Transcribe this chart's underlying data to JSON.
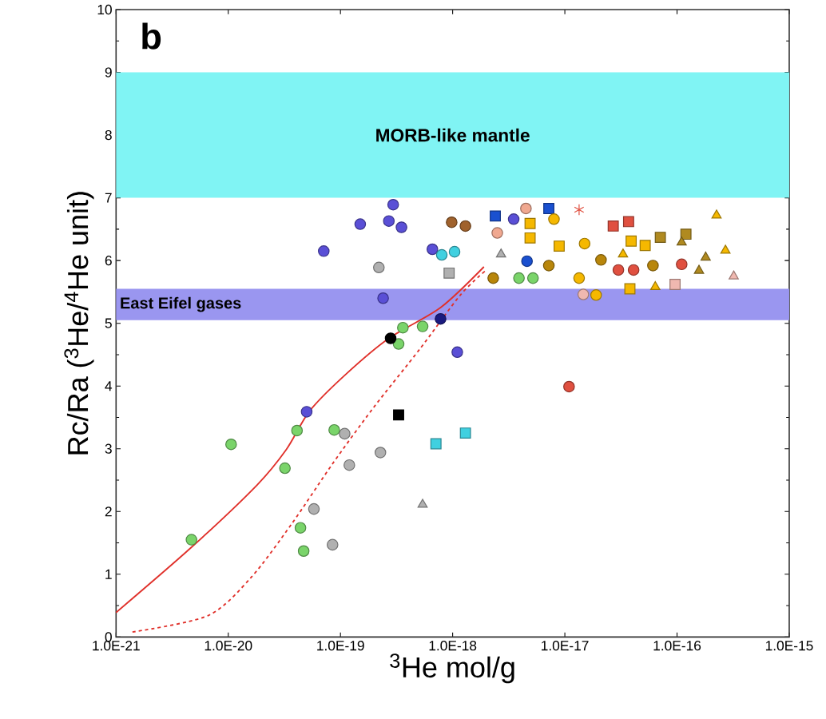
{
  "chart_data": {
    "type": "scatter",
    "xlabel": "$^{3}$He mol/g",
    "ylabel": "Rc/Ra ($^{3}$He/$^{4}$He unit)",
    "annotations": [
      "b"
    ],
    "log": "x",
    "xlim": [
      1e-21,
      1e-15
    ],
    "ylim": [
      0,
      10
    ],
    "xticks": [
      {
        "value": 1e-21,
        "label": "1.0E-21"
      },
      {
        "value": 1e-20,
        "label": "1.0E-20"
      },
      {
        "value": 1e-19,
        "label": "1.0E-19"
      },
      {
        "value": 1e-18,
        "label": "1.0E-18"
      },
      {
        "value": 1e-17,
        "label": "1.0E-17"
      },
      {
        "value": 1e-16,
        "label": "1.0E-16"
      },
      {
        "value": 1e-15,
        "label": "1.0E-15"
      }
    ],
    "yticks": [
      0,
      1,
      2,
      3,
      4,
      5,
      6,
      7,
      8,
      9,
      10
    ],
    "bands": [
      {
        "axis": "y",
        "from": 7,
        "to": 9,
        "label": "MORB-like mantle",
        "color": "#80f4f4"
      },
      {
        "axis": "y",
        "from": 5.05,
        "to": 5.55,
        "label": "East Eifel gases",
        "color": "#9a96f0"
      }
    ],
    "series": [
      {
        "type": "line",
        "color": "#e0302a",
        "marker": "none",
        "line_style": "solid",
        "x": [
          1e-21,
          4.7e-21,
          1.8e-20,
          3.3e-20,
          5.3e-20,
          1.09e-19,
          2.7e-19,
          7.8e-19,
          1.9e-18
        ],
        "values": [
          0.39,
          1.43,
          2.42,
          2.99,
          3.6,
          4.17,
          4.76,
          5.25,
          5.9
        ]
      },
      {
        "type": "line",
        "color": "#e0302a",
        "marker": "none",
        "line_style": "dashed",
        "x": [
          1.4e-21,
          6.6e-21,
          1.6e-20,
          3.7e-20,
          8.5e-20,
          1.96e-19,
          5.1e-19,
          1.17e-18,
          1.94e-18
        ],
        "values": [
          0.08,
          0.34,
          0.95,
          1.81,
          2.76,
          3.65,
          4.59,
          5.45,
          5.83
        ]
      },
      {
        "color": "#5a4fd6",
        "marker": "circle",
        "x": [
          2.95e-19,
          2.7e-19,
          3.5e-19,
          1.5e-19,
          7.1e-20,
          2.4e-19,
          1.1e-18,
          5e-20,
          6.6e-19,
          3.5e-18
        ],
        "values": [
          6.89,
          6.63,
          6.53,
          6.58,
          6.15,
          5.4,
          4.54,
          3.59,
          6.18,
          6.66
        ]
      },
      {
        "color": "#1a1a80",
        "marker": "circle",
        "x": [
          7.8e-19
        ],
        "values": [
          5.07
        ]
      },
      {
        "color": "#a0622d",
        "marker": "circle",
        "x": [
          9.8e-19,
          1.3e-18
        ],
        "values": [
          6.61,
          6.55
        ]
      },
      {
        "color": "#b0b0b0",
        "marker": "circle",
        "x": [
          2.2e-19,
          2.27e-19,
          1.09e-19,
          1.2e-19,
          5.8e-20,
          8.5e-20
        ],
        "values": [
          5.89,
          2.94,
          3.24,
          2.74,
          2.04,
          1.47
        ]
      },
      {
        "color": "#b0b0b0",
        "marker": "square",
        "x": [
          9.3e-19
        ],
        "values": [
          5.8
        ]
      },
      {
        "color": "#b0b0b0",
        "marker": "triangle",
        "x": [
          5.4e-19,
          2.7e-18
        ],
        "values": [
          2.11,
          6.1
        ]
      },
      {
        "color": "#7ad46a",
        "marker": "circle",
        "x": [
          1.06e-20,
          4.7e-21,
          3.2e-20,
          4.1e-20,
          8.8e-20,
          4.4e-20,
          4.7e-20,
          3.3e-19,
          3.6e-19,
          5.4e-19,
          3.9e-18,
          5.2e-18
        ],
        "values": [
          3.07,
          1.55,
          2.69,
          3.29,
          3.3,
          1.74,
          1.37,
          4.67,
          4.93,
          4.95,
          5.72,
          5.72
        ]
      },
      {
        "color": "#000000",
        "marker": "circle",
        "x": [
          2.8e-19
        ],
        "values": [
          4.76
        ]
      },
      {
        "color": "#000000",
        "marker": "square",
        "x": [
          3.3e-19
        ],
        "values": [
          3.54
        ]
      },
      {
        "color": "#e05040",
        "marker": "circle",
        "x": [
          1.09e-17,
          3e-17,
          4.1e-17,
          1.1e-16
        ],
        "values": [
          3.99,
          5.85,
          5.85,
          5.94
        ]
      },
      {
        "color": "#e05040",
        "marker": "square",
        "x": [
          2.7e-17,
          3.7e-17
        ],
        "values": [
          6.55,
          6.62
        ]
      },
      {
        "color": "#e05040",
        "marker": "cross",
        "x": [
          1.34e-17
        ],
        "values": [
          6.81
        ]
      },
      {
        "color": "#f0a890",
        "marker": "circle",
        "x": [
          4.5e-18,
          2.5e-18
        ],
        "values": [
          6.83,
          6.44
        ]
      },
      {
        "color": "#40d0e0",
        "marker": "circle",
        "x": [
          8e-19,
          1.04e-18
        ],
        "values": [
          6.09,
          6.14
        ]
      },
      {
        "color": "#40d0e0",
        "marker": "square",
        "x": [
          7.1e-19,
          1.3e-18
        ],
        "values": [
          3.08,
          3.25
        ]
      },
      {
        "color": "#1a50d0",
        "marker": "square",
        "x": [
          2.4e-18,
          7.2e-18
        ],
        "values": [
          6.71,
          6.83
        ]
      },
      {
        "color": "#1a50d0",
        "marker": "circle",
        "x": [
          4.6e-18
        ],
        "values": [
          5.99
        ]
      },
      {
        "color": "#b8860b",
        "marker": "circle",
        "x": [
          2.3e-18,
          7.2e-18,
          2.1e-17,
          6.1e-17
        ],
        "values": [
          5.72,
          5.92,
          6.01,
          5.92
        ]
      },
      {
        "color": "#b08a20",
        "marker": "square",
        "x": [
          7.1e-17,
          1.2e-16
        ],
        "values": [
          6.37,
          6.42
        ]
      },
      {
        "color": "#b08a20",
        "marker": "triangle",
        "x": [
          1.8e-16,
          1.57e-16,
          1.1e-16
        ],
        "values": [
          6.05,
          5.84,
          6.29
        ]
      },
      {
        "color": "#f5b800",
        "marker": "circle",
        "x": [
          1.34e-17,
          1.9e-17
        ],
        "values": [
          5.72,
          5.45
        ]
      },
      {
        "color": "#f5b800",
        "marker": "square",
        "x": [
          3.8e-17
        ],
        "values": [
          5.55
        ]
      },
      {
        "color": "#f5b800",
        "marker": "triangle",
        "x": [
          6.4e-17,
          3.3e-17
        ],
        "values": [
          5.58,
          6.1
        ]
      },
      {
        "color": "#f5b800",
        "marker": "square",
        "x": [
          4.9e-18,
          4.9e-18,
          8.9e-18,
          3.9e-17,
          5.2e-17
        ],
        "values": [
          6.36,
          6.59,
          6.23,
          6.31,
          6.24
        ]
      },
      {
        "color": "#f5b800",
        "marker": "circle",
        "x": [
          8e-18,
          1.5e-17
        ],
        "values": [
          6.66,
          6.27
        ]
      },
      {
        "color": "#f5b800",
        "marker": "triangle",
        "x": [
          2.25e-16,
          2.7e-16
        ],
        "values": [
          6.72,
          6.16
        ]
      },
      {
        "color": "#f0b8b0",
        "marker": "circle",
        "x": [
          1.46e-17
        ],
        "values": [
          5.46
        ]
      },
      {
        "color": "#f0b8b0",
        "marker": "square",
        "x": [
          9.6e-17
        ],
        "values": [
          5.62
        ]
      },
      {
        "color": "#f0b8b0",
        "marker": "triangle",
        "x": [
          3.2e-16
        ],
        "values": [
          5.75
        ]
      }
    ]
  }
}
